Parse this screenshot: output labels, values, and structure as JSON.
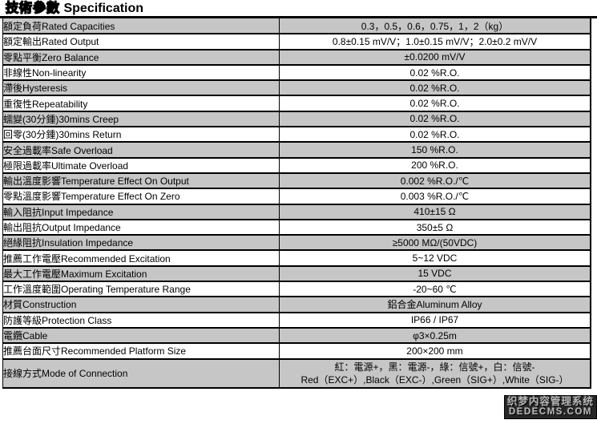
{
  "header": {
    "title_zh": "技術參數",
    "title_en": "Specification"
  },
  "colors": {
    "row_shaded": "#c6c6c6",
    "border": "#000000",
    "watermark_bg": "#262626",
    "watermark_text": "#b9b9b9"
  },
  "table": {
    "rows": [
      {
        "label": "額定負荷Rated Capacities",
        "value": "0.3，0.5，0.6，0.75，1，2（kg）"
      },
      {
        "label": "額定輸出Rated Output",
        "value": "0.8±0.15 mV/V；1.0±0.15 mV/V；2.0±0.2 mV/V"
      },
      {
        "label": "零點平衡Zero Balance",
        "value": "±0.0200 mV/V"
      },
      {
        "label": "非線性Non-linearity",
        "value": "0.02 %R.O."
      },
      {
        "label": "滯後Hysteresis",
        "value": "0.02 %R.O."
      },
      {
        "label": "重復性Repeatability",
        "value": "0.02 %R.O."
      },
      {
        "label": "蠕變(30分鍾)30mins Creep",
        "value": "0.02 %R.O."
      },
      {
        "label": "回零(30分鍾)30mins Return",
        "value": "0.02 %R.O."
      },
      {
        "label": "安全過載率Safe Overload",
        "value": "150 %R.O."
      },
      {
        "label": "極限過載率Ultimate Overload",
        "value": "200 %R.O."
      },
      {
        "label": "輸出溫度影響Temperature Effect On Output",
        "value": "0.002 %R.O./℃"
      },
      {
        "label": "零點溫度影響Temperature Effect On Zero",
        "value": "0.003 %R.O./℃"
      },
      {
        "label": "輸入阻抗Input Impedance",
        "value": "410±15 Ω"
      },
      {
        "label": "輸出阻抗Output Impedance",
        "value": "350±5 Ω"
      },
      {
        "label": "絕緣阻抗Insulation Impedance",
        "value": "≥5000 MΩ/(50VDC)"
      },
      {
        "label": "推薦工作電壓Recommended Excitation",
        "value": "5~12 VDC"
      },
      {
        "label": "最大工作電壓Maximum Excitation",
        "value": "15 VDC"
      },
      {
        "label": "工作溫度範圍Operating Temperature Range",
        "value": "-20~60 ℃"
      },
      {
        "label": "材質Construction",
        "value": "鋁合金Aluminum Alloy"
      },
      {
        "label": "防護等級Protection Class",
        "value": "IP66 / IP67"
      },
      {
        "label": "電纜Cable",
        "value": "φ3×0.25m"
      },
      {
        "label": "推薦台面尺寸Recommended Platform Size",
        "value": "200×200 mm"
      },
      {
        "label": "接線方式Mode of Connection",
        "value_line1": "紅：電源+，黑：電源-，綠：信號+，白：信號-",
        "value_line2": "Red（EXC+）,Black（EXC-）,Green（SIG+）,White（SIG-）"
      }
    ]
  },
  "watermark": {
    "line1": "织梦内容管理系统",
    "line2": "DEDECMS.COM"
  }
}
